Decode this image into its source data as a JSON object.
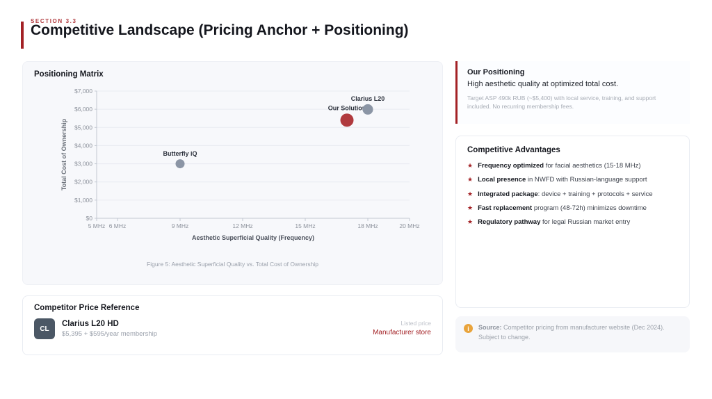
{
  "header": {
    "section_label": "SECTION 3.3",
    "title": "Competitive Landscape (Pricing Anchor + Positioning)"
  },
  "theme": {
    "accent_red": "#a32125",
    "competitor_dot_gray": "#8b95a5",
    "our_solution_red": "#b03a3e",
    "warning_orange": "#e9a43c"
  },
  "matrix_panel": {
    "title": "Positioning Matrix"
  },
  "chart_data": {
    "type": "scatter",
    "title": "Positioning Matrix",
    "xlabel": "Aesthetic Superficial Quality (Frequency)",
    "ylabel": "Total Cost of Ownership",
    "xlim": [
      5,
      20
    ],
    "ylim": [
      0,
      7000
    ],
    "x_ticks": [
      5,
      6,
      9,
      12,
      15,
      18,
      20
    ],
    "x_tick_labels": [
      "5 MHz",
      "6 MHz",
      "9 MHz",
      "12 MHz",
      "15 MHz",
      "18 MHz",
      "20 MHz"
    ],
    "y_ticks": [
      0,
      1000,
      2000,
      3000,
      4000,
      5000,
      6000,
      7000
    ],
    "y_tick_labels": [
      "$0",
      "$1,000",
      "$2,000",
      "$3,000",
      "$4,000",
      "$5,000",
      "$6,000",
      "$7,000"
    ],
    "grid": true,
    "legend": "none",
    "points": [
      {
        "label": "Butterfly iQ",
        "x": 9,
        "y": 3000,
        "color": "#8b95a5",
        "r": 6.5
      },
      {
        "label": "Our Solution",
        "x": 17,
        "y": 5400,
        "color": "#b03a3e",
        "r": 9.5
      },
      {
        "label": "Clarius L20",
        "x": 18,
        "y": 5990,
        "color": "#8b95a5",
        "r": 7.5
      }
    ],
    "caption": "Figure 5: Aesthetic Superficial Quality vs. Total Cost of Ownership"
  },
  "positioning_card": {
    "title": "Our Positioning",
    "subtitle": "High aesthetic quality at optimized total cost.",
    "body": "Target ASP 490k RUB (~$5,400) with local service, training, and support included. No recurring membership fees."
  },
  "advantages_card": {
    "title": "Competitive Advantages",
    "items": [
      {
        "lead": "Frequency optimized",
        "rest": " for facial aesthetics (15-18 MHz)"
      },
      {
        "lead": "Local presence",
        "rest": " in NWFD with Russian-language support"
      },
      {
        "lead": "Integrated package",
        "rest": ": device + training + protocols + service"
      },
      {
        "lead": "Fast replacement",
        "rest": " program (48-72h) minimizes downtime"
      },
      {
        "lead": "Regulatory pathway",
        "rest": " for legal Russian market entry"
      }
    ]
  },
  "price_reference": {
    "title": "Competitor Price Reference",
    "items": [
      {
        "avatar": "CL",
        "name": "Clarius L20 HD",
        "price": "$5,395 + $595/year membership",
        "tag": "Listed price",
        "source": "Manufacturer store"
      }
    ]
  },
  "source_note": {
    "label": "Source:",
    "text": " Competitor pricing from manufacturer website (Dec 2024). Subject to change."
  }
}
